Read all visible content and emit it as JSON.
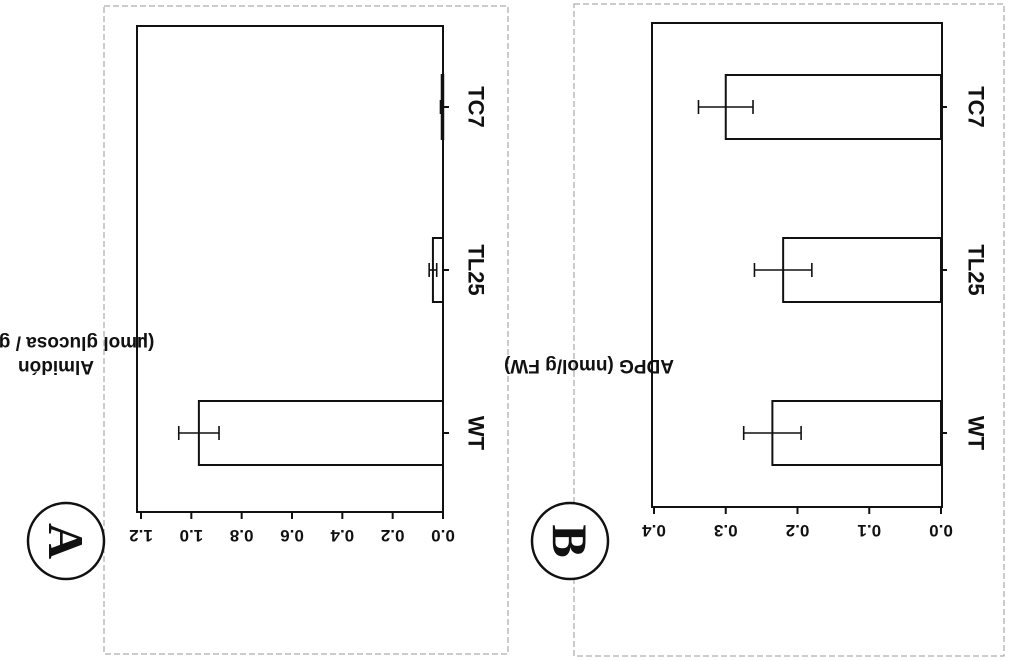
{
  "chart_data": [
    {
      "panel": "A",
      "type": "bar",
      "categories": [
        "WT",
        "TL25",
        "TC7"
      ],
      "values": [
        0.97,
        0.04,
        0.005
      ],
      "errors": [
        0.08,
        0.015,
        0.005
      ],
      "ylabel_line1": "Almidón",
      "ylabel_line2": "(µmol glucosa / g FW)",
      "ylim": [
        0,
        1.2
      ],
      "yticks": [
        "0.0",
        "0.2",
        "0.4",
        "0.6",
        "0.8",
        "1.0",
        "1.2"
      ],
      "grid": false,
      "orientation": "rotated 90° (page shown sideways)"
    },
    {
      "panel": "B",
      "type": "bar",
      "categories": [
        "WT",
        "TL25",
        "TC7"
      ],
      "values": [
        0.235,
        0.22,
        0.3
      ],
      "errors": [
        0.04,
        0.04,
        0.038
      ],
      "ylabel_line1": "ADPG (nmol/g FW)",
      "ylim": [
        0,
        0.4
      ],
      "yticks": [
        "0.0",
        "0.1",
        "0.2",
        "0.3",
        "0.4"
      ],
      "grid": false,
      "orientation": "rotated 90° (page shown sideways)"
    }
  ],
  "colors": {
    "ink": "#111111",
    "bar_fill": "#ffffff",
    "frame": "#888888"
  }
}
